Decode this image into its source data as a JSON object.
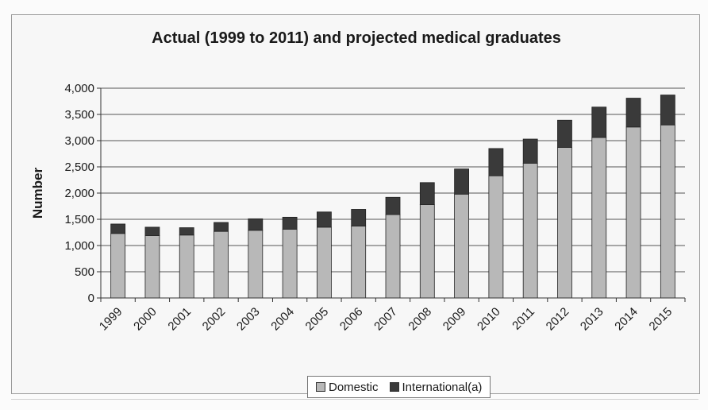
{
  "chart_data": {
    "type": "bar",
    "stacked": true,
    "title": "Actual (1999 to 2011) and projected medical graduates",
    "xlabel": "",
    "ylabel": "Number",
    "ylim": [
      0,
      4000
    ],
    "yticks": [
      0,
      500,
      1000,
      1500,
      2000,
      2500,
      3000,
      3500,
      4000
    ],
    "ytick_labels": [
      "0",
      "500",
      "1,000",
      "1,500",
      "2,000",
      "2,500",
      "3,000",
      "3,500",
      "4,000"
    ],
    "grid": true,
    "legend_position": "bottom",
    "categories": [
      "1999",
      "2000",
      "2001",
      "2002",
      "2003",
      "2004",
      "2005",
      "2006",
      "2007",
      "2008",
      "2009",
      "2010",
      "2011",
      "2012",
      "2013",
      "2014",
      "2015"
    ],
    "series": [
      {
        "name": "Domestic",
        "color": "#b8b8b8",
        "values": [
          1230,
          1190,
          1200,
          1270,
          1290,
          1310,
          1350,
          1370,
          1590,
          1780,
          1980,
          2330,
          2570,
          2870,
          3060,
          3260,
          3300
        ]
      },
      {
        "name": "International(a)",
        "color": "#3a3a3a",
        "values": [
          180,
          160,
          140,
          170,
          220,
          230,
          290,
          320,
          330,
          420,
          480,
          520,
          460,
          520,
          580,
          550,
          570
        ]
      }
    ]
  }
}
